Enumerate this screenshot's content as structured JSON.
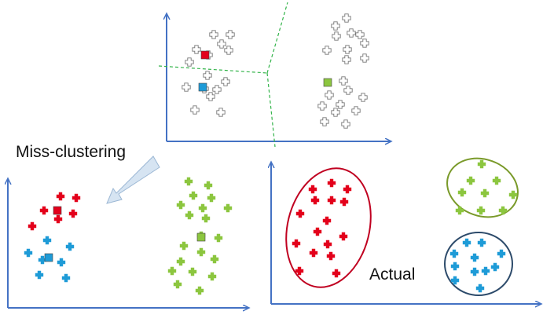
{
  "labels": {
    "misclustering": "Miss-clustering",
    "actual": "Actual"
  },
  "colors": {
    "axis": "#4472c4",
    "red": "#e3001b",
    "blue": "#1e9bd7",
    "green": "#8cc63f",
    "grey_point": "#777777",
    "boundary": "#33b44a",
    "ellipse_red": "#c00020",
    "ellipse_green": "#7a9a2a",
    "ellipse_blue": "#2c4a6a",
    "arrow_fill": "#d6e4f2",
    "arrow_stroke": "#9bb7d4"
  },
  "panels": [
    {
      "id": "initial",
      "marker_style": "outline",
      "groups": [
        {
          "name": "cluster-a",
          "color_key": "grey_point",
          "points": [
            [
              272,
              44
            ],
            [
              293,
              44
            ],
            [
              282,
              56
            ],
            [
              291,
              64
            ],
            [
              250,
              63
            ],
            [
              265,
              70
            ],
            [
              241,
              79
            ],
            [
              264,
              96
            ],
            [
              287,
              104
            ],
            [
              237,
              111
            ],
            [
              260,
              113
            ],
            [
              276,
              114
            ],
            [
              268,
              123
            ],
            [
              248,
              140
            ],
            [
              281,
              143
            ]
          ]
        },
        {
          "name": "cluster-b",
          "color_key": "grey_point",
          "points": [
            [
              441,
              23
            ],
            [
              427,
              33
            ],
            [
              447,
              42
            ],
            [
              428,
              46
            ],
            [
              458,
              44
            ],
            [
              464,
              55
            ],
            [
              416,
              64
            ],
            [
              442,
              63
            ],
            [
              464,
              74
            ],
            [
              441,
              76
            ],
            [
              437,
              103
            ],
            [
              443,
              115
            ],
            [
              419,
              121
            ],
            [
              462,
              124
            ],
            [
              410,
              135
            ],
            [
              433,
              133
            ],
            [
              453,
              141
            ],
            [
              427,
              143
            ],
            [
              413,
              155
            ],
            [
              440,
              158
            ]
          ]
        }
      ],
      "centroids": [
        {
          "name": "centroid-red",
          "color_key": "red",
          "at": [
            261,
            70
          ]
        },
        {
          "name": "centroid-blue",
          "color_key": "blue",
          "at": [
            258,
            111
          ]
        },
        {
          "name": "centroid-green",
          "color_key": "green",
          "at": [
            417,
            105
          ]
        }
      ]
    },
    {
      "id": "miss-clustering",
      "marker_style": "filled",
      "groups": [
        {
          "name": "red-group",
          "color_key": "red",
          "points": [
            [
              77,
              250
            ],
            [
              97,
              252
            ],
            [
              56,
              268
            ],
            [
              93,
              272
            ],
            [
              74,
              279
            ],
            [
              41,
              288
            ]
          ]
        },
        {
          "name": "blue-group",
          "color_key": "blue",
          "points": [
            [
              60,
              306
            ],
            [
              89,
              314
            ],
            [
              36,
              322
            ],
            [
              54,
              331
            ],
            [
              78,
              334
            ],
            [
              50,
              350
            ],
            [
              84,
              354
            ]
          ]
        },
        {
          "name": "green-group",
          "color_key": "green",
          "points": [
            [
              240,
              231
            ],
            [
              265,
              236
            ],
            [
              246,
              249
            ],
            [
              269,
              252
            ],
            [
              230,
              261
            ],
            [
              258,
              265
            ],
            [
              290,
              265
            ],
            [
              241,
              274
            ],
            [
              262,
              278
            ],
            [
              256,
              300
            ],
            [
              278,
              303
            ],
            [
              234,
              313
            ],
            [
              256,
              321
            ],
            [
              273,
              330
            ],
            [
              230,
              333
            ],
            [
              219,
              345
            ],
            [
              245,
              346
            ],
            [
              270,
              352
            ],
            [
              226,
              362
            ],
            [
              254,
              370
            ]
          ]
        }
      ],
      "centroids": [
        {
          "name": "centroid-red",
          "color_key": "red",
          "at": [
            73,
            268
          ]
        },
        {
          "name": "centroid-blue",
          "color_key": "blue",
          "at": [
            62,
            328
          ]
        },
        {
          "name": "centroid-green",
          "color_key": "green",
          "at": [
            256,
            302
          ]
        }
      ]
    },
    {
      "id": "actual",
      "marker_style": "filled",
      "groups": [
        {
          "name": "red-group",
          "color_key": "red",
          "points": [
            [
              422,
              233
            ],
            [
              398,
              241
            ],
            [
              442,
              241
            ],
            [
              422,
              255
            ],
            [
              401,
              255
            ],
            [
              438,
              257
            ],
            [
              382,
              272
            ],
            [
              416,
              281
            ],
            [
              404,
              295
            ],
            [
              437,
              301
            ],
            [
              377,
              310
            ],
            [
              417,
              311
            ],
            [
              399,
              322
            ],
            [
              421,
              326
            ],
            [
              381,
              345
            ],
            [
              428,
              348
            ]
          ]
        },
        {
          "name": "green-group",
          "color_key": "green",
          "points": [
            [
              613,
              209
            ],
            [
              599,
              230
            ],
            [
              632,
              230
            ],
            [
              588,
              245
            ],
            [
              653,
              248
            ],
            [
              617,
              246
            ],
            [
              640,
              268
            ],
            [
              612,
              268
            ],
            [
              585,
              268
            ]
          ]
        },
        {
          "name": "blue-group",
          "color_key": "blue",
          "points": [
            [
              594,
              309
            ],
            [
              613,
              309
            ],
            [
              578,
              323
            ],
            [
              638,
              323
            ],
            [
              604,
              328
            ],
            [
              579,
              339
            ],
            [
              618,
              345
            ],
            [
              604,
              346
            ],
            [
              630,
              340
            ],
            [
              579,
              357
            ],
            [
              611,
              367
            ]
          ]
        }
      ],
      "centroids": []
    }
  ]
}
